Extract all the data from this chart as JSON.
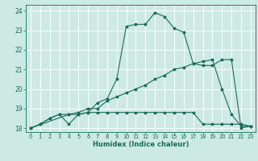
{
  "title": "",
  "xlabel": "Humidex (Indice chaleur)",
  "ylabel": "",
  "bg_color": "#cce9e4",
  "grid_color": "#ffffff",
  "line_color": "#1a6b5a",
  "xlim": [
    -0.5,
    23.5
  ],
  "ylim": [
    17.8,
    24.3
  ],
  "xticks": [
    0,
    1,
    2,
    3,
    4,
    5,
    6,
    7,
    8,
    9,
    10,
    11,
    12,
    13,
    14,
    15,
    16,
    17,
    18,
    19,
    20,
    21,
    22,
    23
  ],
  "yticks": [
    18,
    19,
    20,
    21,
    22,
    23,
    24
  ],
  "curve1_x": [
    0,
    1,
    2,
    3,
    4,
    5,
    6,
    7,
    8,
    9,
    10,
    11,
    12,
    13,
    14,
    15,
    16,
    17,
    18,
    19,
    20,
    21,
    22,
    23
  ],
  "curve1_y": [
    18.0,
    18.2,
    18.5,
    18.7,
    18.2,
    18.7,
    18.8,
    19.3,
    19.5,
    20.5,
    23.2,
    23.3,
    23.3,
    23.9,
    23.7,
    23.1,
    22.9,
    21.3,
    21.4,
    21.5,
    20.0,
    18.7,
    18.1,
    18.1
  ],
  "curve2_x": [
    0,
    1,
    2,
    3,
    4,
    5,
    6,
    7,
    8,
    9,
    10,
    11,
    12,
    13,
    14,
    15,
    16,
    17,
    18,
    19,
    20,
    21,
    22,
    23
  ],
  "curve2_y": [
    18.0,
    18.2,
    18.5,
    18.7,
    18.7,
    18.8,
    19.0,
    19.0,
    19.4,
    19.6,
    19.8,
    20.0,
    20.2,
    20.5,
    20.7,
    21.0,
    21.1,
    21.3,
    21.2,
    21.2,
    21.5,
    21.5,
    18.0,
    18.1
  ],
  "curve3_x": [
    0,
    4,
    5,
    6,
    7,
    8,
    9,
    10,
    11,
    12,
    13,
    14,
    15,
    16,
    17,
    18,
    19,
    20,
    21,
    22,
    23
  ],
  "curve3_y": [
    18.0,
    18.7,
    18.7,
    18.8,
    18.8,
    18.8,
    18.8,
    18.8,
    18.8,
    18.8,
    18.8,
    18.8,
    18.8,
    18.8,
    18.8,
    18.2,
    18.2,
    18.2,
    18.2,
    18.2,
    18.1
  ],
  "xlabel_fontsize": 6.0,
  "xtick_fontsize": 4.8,
  "ytick_fontsize": 5.5,
  "linewidth": 0.8,
  "markersize": 2.5
}
